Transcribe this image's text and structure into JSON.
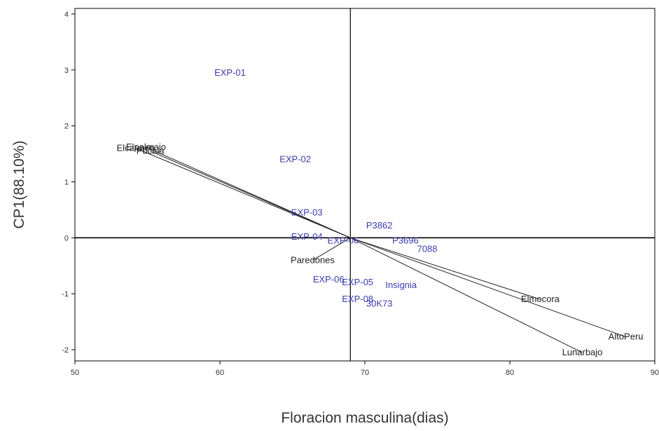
{
  "chart_data": {
    "type": "scatter",
    "title": "",
    "xlabel": "Floracion masculina(dias)",
    "ylabel": "CP1(88.10%)",
    "xlim": [
      50,
      90
    ],
    "ylim": [
      -2.2,
      4.1
    ],
    "x_ticks": [
      "50",
      "60",
      "70",
      "80",
      "90"
    ],
    "y_ticks": [
      "-2",
      "-1",
      "0",
      "1",
      "2",
      "3",
      "4"
    ],
    "reference_lines": {
      "x": 69,
      "y": 0
    },
    "vector_origin": [
      69,
      0
    ],
    "grid": false,
    "legend": "none",
    "colors": {
      "genotype": "#3b3bb0",
      "environment": "#222222",
      "axis": "#000000"
    },
    "genotypes": [
      {
        "label": "EXP-01",
        "x": 60.7,
        "y": 2.95
      },
      {
        "label": "EXP-02",
        "x": 65.2,
        "y": 1.4
      },
      {
        "label": "EXP-03",
        "x": 66.0,
        "y": 0.45
      },
      {
        "label": "EXP-04",
        "x": 66.0,
        "y": 0.02
      },
      {
        "label": "P3862",
        "x": 71.0,
        "y": 0.22
      },
      {
        "label": "EXP-06",
        "x": 68.5,
        "y": -0.05
      },
      {
        "label": "P3696",
        "x": 72.8,
        "y": -0.05
      },
      {
        "label": "7088",
        "x": 74.3,
        "y": -0.2
      },
      {
        "label": "EXP-06",
        "x": 67.5,
        "y": -0.75
      },
      {
        "label": "EXP-05",
        "x": 69.5,
        "y": -0.8
      },
      {
        "label": "Insignia",
        "x": 72.5,
        "y": -0.85
      },
      {
        "label": "EXP-08",
        "x": 69.5,
        "y": -1.1
      },
      {
        "label": "30K73",
        "x": 71.0,
        "y": -1.18
      }
    ],
    "environments": [
      {
        "label": "Elpalmajo",
        "x": 54.9,
        "y": 1.62
      },
      {
        "label": "Pucala",
        "x": 55.2,
        "y": 1.55
      },
      {
        "label": "Elcarmen",
        "x": 54.2,
        "y": 1.6
      },
      {
        "label": "Paredones",
        "x": 66.4,
        "y": -0.4
      },
      {
        "label": "Elmocora",
        "x": 82.1,
        "y": -1.1
      },
      {
        "label": "AltoPeru",
        "x": 88.0,
        "y": -1.77
      },
      {
        "label": "Lunarbajo",
        "x": 85.0,
        "y": -2.05
      }
    ]
  }
}
